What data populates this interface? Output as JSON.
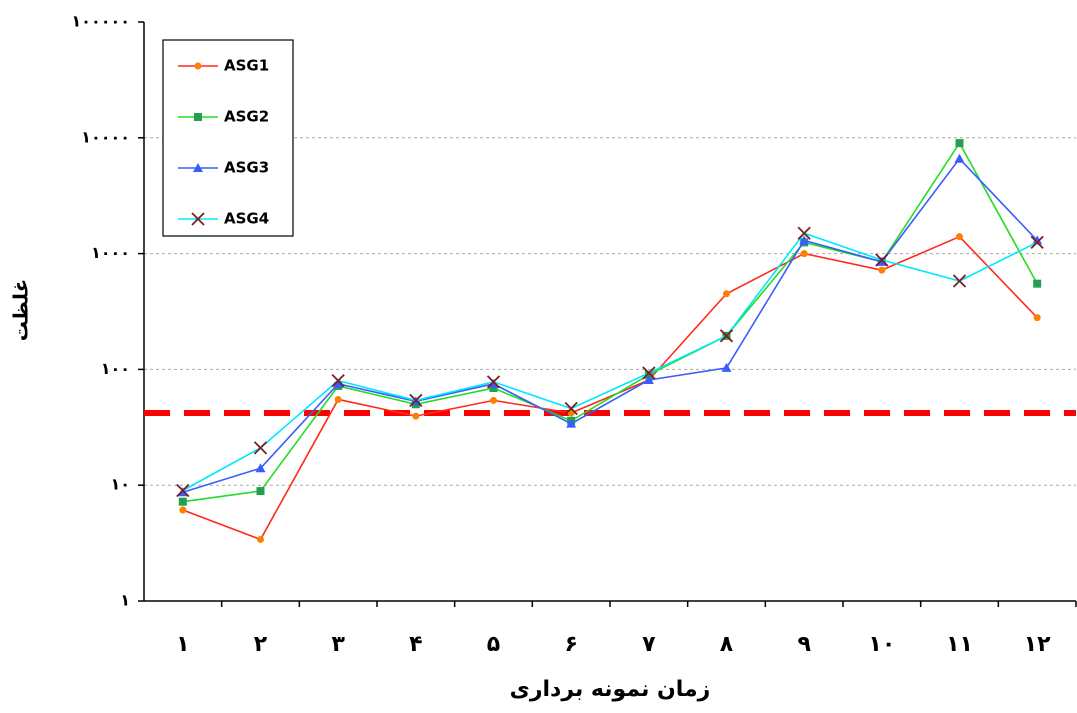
{
  "chart_data": {
    "type": "line",
    "y_label": "غلظت",
    "x_label": "زمان نمونه برداری",
    "categories": [
      "۱",
      "۲",
      "۳",
      "۴",
      "۵",
      "۶",
      "۷",
      "۸",
      "۹",
      "۱۰",
      "۱۱",
      "۱۲"
    ],
    "series": [
      {
        "name": "ASG1",
        "color": "#ff2a1a",
        "marker": "circle",
        "marker_color": "#ff8000",
        "values": [
          6.1,
          3.4,
          55,
          39.5,
          54,
          42,
          81,
          450,
          1000,
          720,
          1400,
          280
        ]
      },
      {
        "name": "ASG2",
        "color": "#22dd22",
        "marker": "square",
        "marker_color": "#22a050",
        "values": [
          7.2,
          8.9,
          72,
          50,
          69,
          36,
          90,
          195,
          1250,
          850,
          9000,
          550
        ]
      },
      {
        "name": "ASG3",
        "color": "#3a5cff",
        "marker": "triangle",
        "marker_color": "#3a5cff",
        "values": [
          8.7,
          14,
          75,
          53,
          75,
          34,
          81,
          103,
          1300,
          850,
          6600,
          1300
        ]
      },
      {
        "name": "ASG4",
        "color": "#00e8ff",
        "marker": "x",
        "marker_color": "#7a2020",
        "values": [
          9,
          21,
          80,
          54,
          78,
          46,
          93,
          195,
          1500,
          880,
          580,
          1250
        ]
      }
    ],
    "log_scale": true,
    "ylim": [
      1,
      100000
    ],
    "yticks": [
      {
        "value": 1,
        "label": "۱"
      },
      {
        "value": 10,
        "label": "۱۰"
      },
      {
        "value": 100,
        "label": "۱۰۰"
      },
      {
        "value": 1000,
        "label": "۱۰۰۰"
      },
      {
        "value": 10000,
        "label": "۱۰۰۰۰"
      },
      {
        "value": 100000,
        "label": "۱۰۰۰۰۰"
      }
    ],
    "grid": true,
    "legend": "top-left",
    "reference_line": {
      "value": 42,
      "color": "#ff0000"
    }
  }
}
